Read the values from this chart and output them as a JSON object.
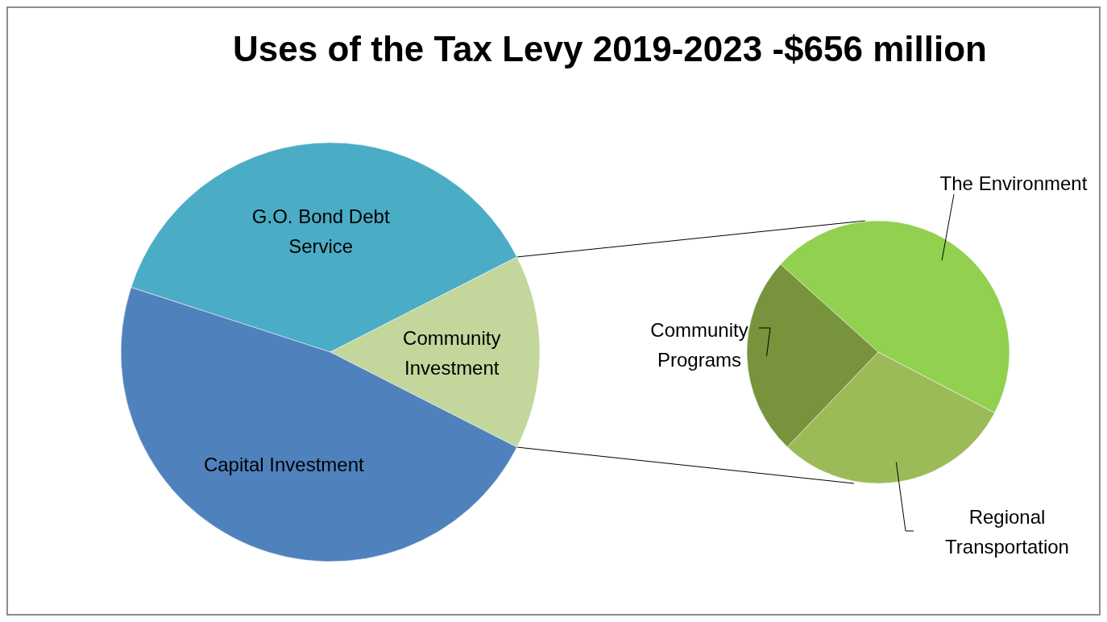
{
  "chart_data": [
    {
      "type": "pie",
      "title": "Uses of the Tax Levy 2019-2023 -$656 million",
      "categories": [
        "G.O. Bond Debt Service",
        "Community Investment",
        "Capital Investment"
      ],
      "values": [
        37.5,
        15,
        47.5
      ],
      "colors": [
        "#4bacc6",
        "#c3d69b",
        "#4f81bd"
      ]
    },
    {
      "type": "pie",
      "categories": [
        "The Environment",
        "Regional Transportation",
        "Community Programs"
      ],
      "values": [
        46,
        29.5,
        24.5
      ],
      "colors": [
        "#92d050",
        "#9bbb59",
        "#77933c"
      ]
    }
  ]
}
